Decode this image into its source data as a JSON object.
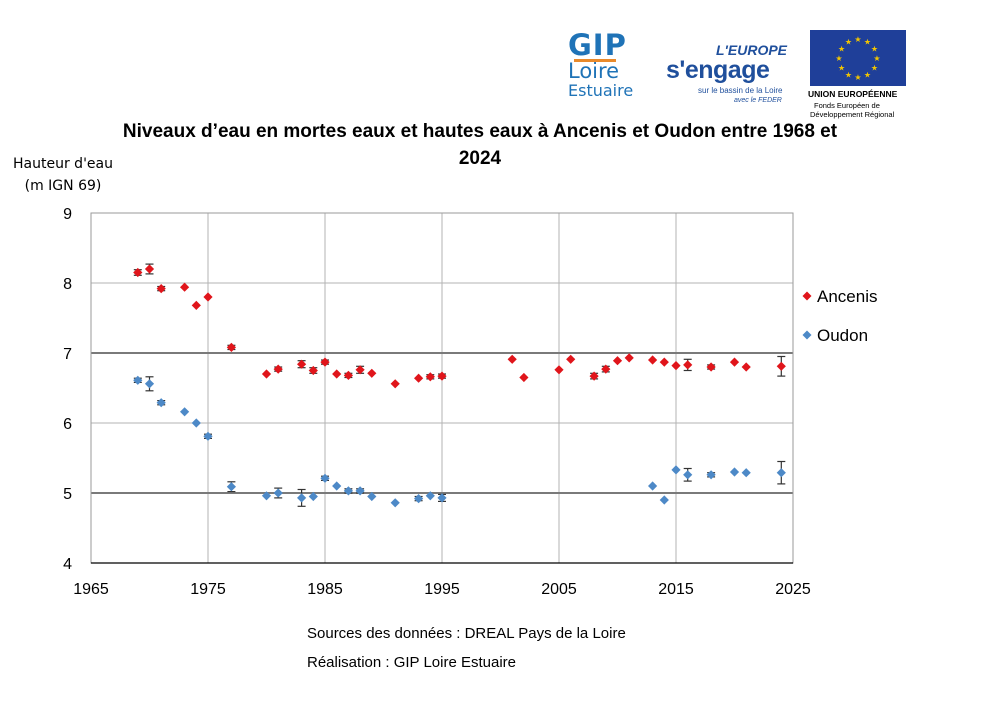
{
  "logos": {
    "gip": {
      "line1": "GIP",
      "line2": "Loire",
      "line3": "Estuaire"
    },
    "europe": {
      "line1": "L'EUROPE",
      "line2": "s'engage",
      "line3": "sur le bassin de la Loire",
      "line4": "avec le FEDER"
    },
    "ue": {
      "line1": "UNION EUROPÉENNE",
      "line2": "Fonds Européen de",
      "line3": "Développement Régional",
      "flag_color": "#1f3f99",
      "star_color": "#f2c500"
    }
  },
  "sources": {
    "line1": "Sources des données : DREAL Pays de la Loire",
    "line2": "Réalisation : GIP Loire Estuaire"
  },
  "chart_data": {
    "type": "scatter",
    "title": "Niveaux d’eau en mortes eaux et hautes eaux à Ancenis et Oudon entre 1968 et 2024",
    "ylabel": "Hauteur d'eau (m IGN 69)",
    "xlabel": "",
    "xlim": [
      1965,
      2025
    ],
    "ylim": [
      4,
      9
    ],
    "xticks": [
      1965,
      1975,
      1985,
      1995,
      2005,
      2015,
      2025
    ],
    "yticks": [
      4,
      5,
      6,
      7,
      8,
      9
    ],
    "grid": true,
    "legend": "right",
    "series": [
      {
        "name": "Ancenis",
        "color": "#e0151b",
        "marker": "diamond",
        "points": [
          {
            "x": 1969,
            "y": 8.15,
            "err": 0.04
          },
          {
            "x": 1970,
            "y": 8.2,
            "err": 0.07
          },
          {
            "x": 1971,
            "y": 7.92,
            "err": 0.03
          },
          {
            "x": 1973,
            "y": 7.94,
            "err": 0.0
          },
          {
            "x": 1974,
            "y": 7.68,
            "err": 0.0
          },
          {
            "x": 1975,
            "y": 7.8,
            "err": 0.0
          },
          {
            "x": 1977,
            "y": 7.08,
            "err": 0.03
          },
          {
            "x": 1980,
            "y": 6.7,
            "err": 0.0
          },
          {
            "x": 1981,
            "y": 6.77,
            "err": 0.03
          },
          {
            "x": 1983,
            "y": 6.84,
            "err": 0.05
          },
          {
            "x": 1984,
            "y": 6.75,
            "err": 0.04
          },
          {
            "x": 1985,
            "y": 6.87,
            "err": 0.03
          },
          {
            "x": 1986,
            "y": 6.7,
            "err": 0.0
          },
          {
            "x": 1987,
            "y": 6.68,
            "err": 0.03
          },
          {
            "x": 1988,
            "y": 6.76,
            "err": 0.05
          },
          {
            "x": 1989,
            "y": 6.71,
            "err": 0.0
          },
          {
            "x": 1991,
            "y": 6.56,
            "err": 0.0
          },
          {
            "x": 1993,
            "y": 6.64,
            "err": 0.0
          },
          {
            "x": 1994,
            "y": 6.66,
            "err": 0.03
          },
          {
            "x": 1995,
            "y": 6.67,
            "err": 0.03
          },
          {
            "x": 2001,
            "y": 6.91,
            "err": 0.0
          },
          {
            "x": 2002,
            "y": 6.65,
            "err": 0.0
          },
          {
            "x": 2005,
            "y": 6.76,
            "err": 0.0
          },
          {
            "x": 2006,
            "y": 6.91,
            "err": 0.0
          },
          {
            "x": 2008,
            "y": 6.67,
            "err": 0.04
          },
          {
            "x": 2009,
            "y": 6.77,
            "err": 0.04
          },
          {
            "x": 2010,
            "y": 6.89,
            "err": 0.0
          },
          {
            "x": 2011,
            "y": 6.93,
            "err": 0.0
          },
          {
            "x": 2013,
            "y": 6.9,
            "err": 0.0
          },
          {
            "x": 2014,
            "y": 6.87,
            "err": 0.0
          },
          {
            "x": 2015,
            "y": 6.82,
            "err": 0.0
          },
          {
            "x": 2016,
            "y": 6.83,
            "err": 0.08
          },
          {
            "x": 2018,
            "y": 6.8,
            "err": 0.03
          },
          {
            "x": 2020,
            "y": 6.87,
            "err": 0.0
          },
          {
            "x": 2021,
            "y": 6.8,
            "err": 0.0
          },
          {
            "x": 2024,
            "y": 6.81,
            "err": 0.14
          }
        ]
      },
      {
        "name": "Oudon",
        "color": "#4d89c7",
        "marker": "diamond",
        "points": [
          {
            "x": 1969,
            "y": 6.61,
            "err": 0.03
          },
          {
            "x": 1970,
            "y": 6.56,
            "err": 0.1
          },
          {
            "x": 1971,
            "y": 6.29,
            "err": 0.03
          },
          {
            "x": 1973,
            "y": 6.16,
            "err": 0.0
          },
          {
            "x": 1974,
            "y": 6.0,
            "err": 0.0
          },
          {
            "x": 1975,
            "y": 5.81,
            "err": 0.03
          },
          {
            "x": 1977,
            "y": 5.09,
            "err": 0.07
          },
          {
            "x": 1980,
            "y": 4.96,
            "err": 0.0
          },
          {
            "x": 1981,
            "y": 5.0,
            "err": 0.07
          },
          {
            "x": 1983,
            "y": 4.93,
            "err": 0.12
          },
          {
            "x": 1984,
            "y": 4.95,
            "err": 0.0
          },
          {
            "x": 1985,
            "y": 5.21,
            "err": 0.03
          },
          {
            "x": 1986,
            "y": 5.1,
            "err": 0.0
          },
          {
            "x": 1987,
            "y": 5.03,
            "err": 0.03
          },
          {
            "x": 1988,
            "y": 5.03,
            "err": 0.03
          },
          {
            "x": 1989,
            "y": 4.95,
            "err": 0.0
          },
          {
            "x": 1991,
            "y": 4.86,
            "err": 0.0
          },
          {
            "x": 1993,
            "y": 4.92,
            "err": 0.03
          },
          {
            "x": 1994,
            "y": 4.96,
            "err": 0.0
          },
          {
            "x": 1995,
            "y": 4.93,
            "err": 0.05
          },
          {
            "x": 2013,
            "y": 5.1,
            "err": 0.0
          },
          {
            "x": 2014,
            "y": 4.9,
            "err": 0.0
          },
          {
            "x": 2015,
            "y": 5.33,
            "err": 0.0
          },
          {
            "x": 2016,
            "y": 5.26,
            "err": 0.09
          },
          {
            "x": 2018,
            "y": 5.26,
            "err": 0.03
          },
          {
            "x": 2020,
            "y": 5.3,
            "err": 0.0
          },
          {
            "x": 2021,
            "y": 5.29,
            "err": 0.0
          },
          {
            "x": 2024,
            "y": 5.29,
            "err": 0.16
          }
        ]
      }
    ]
  }
}
